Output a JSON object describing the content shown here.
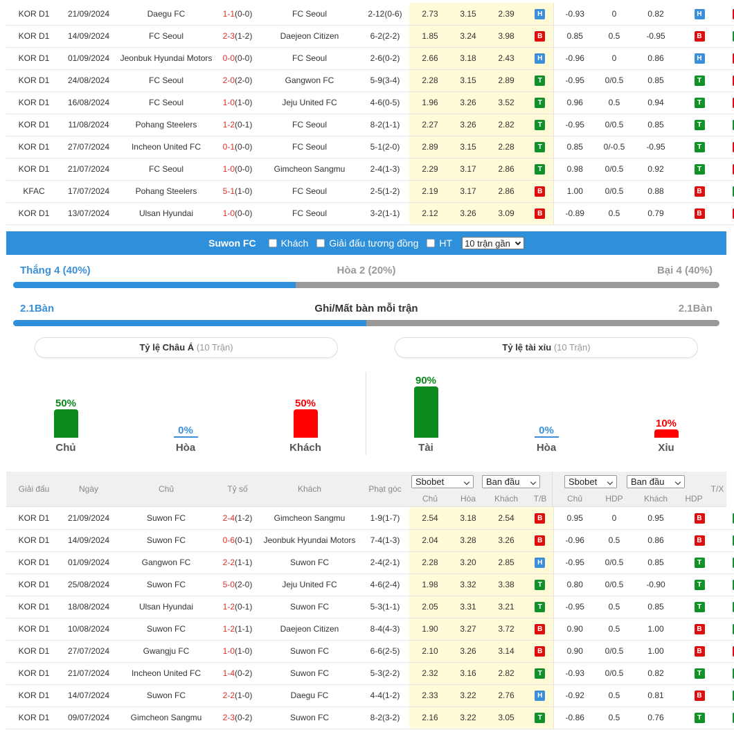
{
  "top_rows": [
    {
      "league": "KOR D1",
      "date": "21/09/2024",
      "home": "Daegu FC",
      "home_hl": false,
      "ft": "1-1",
      "ht": "(0-0)",
      "away": "FC Seoul",
      "away_hl": true,
      "corner": "2-12(0-6)",
      "o1": "2.73",
      "ox": "3.15",
      "o2": "2.39",
      "r1": "H",
      "h1": "-0.93",
      "hdp": "0",
      "h2": "0.82",
      "r2": "H",
      "r3": "X"
    },
    {
      "league": "KOR D1",
      "date": "14/09/2024",
      "home": "FC Seoul",
      "home_hl": true,
      "ft": "2-3",
      "ht": "(1-2)",
      "away": "Daejeon Citizen",
      "away_hl": false,
      "corner": "6-2(2-2)",
      "o1": "1.85",
      "ox": "3.24",
      "o2": "3.98",
      "r1": "B",
      "h1": "0.85",
      "hdp": "0.5",
      "h2": "-0.95",
      "r2": "B",
      "r3": "T"
    },
    {
      "league": "KOR D1",
      "date": "01/09/2024",
      "home": "Jeonbuk Hyundai Motors",
      "home_hl": false,
      "ft": "0-0",
      "ht": "(0-0)",
      "away": "FC Seoul",
      "away_hl": true,
      "corner": "2-6(0-2)",
      "o1": "2.66",
      "ox": "3.18",
      "o2": "2.43",
      "r1": "H",
      "h1": "-0.96",
      "hdp": "0",
      "h2": "0.86",
      "r2": "H",
      "r3": "X"
    },
    {
      "league": "KOR D1",
      "date": "24/08/2024",
      "home": "FC Seoul",
      "home_hl": true,
      "ft": "2-0",
      "ht": "(2-0)",
      "away": "Gangwon FC",
      "away_hl": false,
      "corner": "5-9(3-4)",
      "o1": "2.28",
      "ox": "3.15",
      "o2": "2.89",
      "r1": "T",
      "h1": "-0.95",
      "hdp": "0/0.5",
      "h2": "0.85",
      "r2": "T",
      "r3": "X"
    },
    {
      "league": "KOR D1",
      "date": "16/08/2024",
      "home": "FC Seoul",
      "home_hl": true,
      "ft": "1-0",
      "ht": "(1-0)",
      "away": "Jeju United FC",
      "away_hl": false,
      "corner": "4-6(0-5)",
      "o1": "1.96",
      "ox": "3.26",
      "o2": "3.52",
      "r1": "T",
      "h1": "0.96",
      "hdp": "0.5",
      "h2": "0.94",
      "r2": "T",
      "r3": "X"
    },
    {
      "league": "KOR D1",
      "date": "11/08/2024",
      "home": "Pohang Steelers",
      "home_hl": false,
      "ft": "1-2",
      "ht": "(0-1)",
      "away": "FC Seoul",
      "away_hl": true,
      "corner": "8-2(1-1)",
      "o1": "2.27",
      "ox": "3.26",
      "o2": "2.82",
      "r1": "T",
      "h1": "-0.95",
      "hdp": "0/0.5",
      "h2": "0.85",
      "r2": "T",
      "r3": "T"
    },
    {
      "league": "KOR D1",
      "date": "27/07/2024",
      "home": "Incheon United FC",
      "home_hl": false,
      "ft": "0-1",
      "ht": "(0-0)",
      "away": "FC Seoul",
      "away_hl": true,
      "corner": "5-1(2-0)",
      "o1": "2.89",
      "ox": "3.15",
      "o2": "2.28",
      "r1": "T",
      "h1": "0.85",
      "hdp": "0/-0.5",
      "h2": "-0.95",
      "r2": "T",
      "r3": "X"
    },
    {
      "league": "KOR D1",
      "date": "21/07/2024",
      "home": "FC Seoul",
      "home_hl": true,
      "ft": "1-0",
      "ht": "(0-0)",
      "away": "Gimcheon Sangmu",
      "away_hl": false,
      "corner": "2-4(1-3)",
      "o1": "2.29",
      "ox": "3.17",
      "o2": "2.86",
      "r1": "T",
      "h1": "0.98",
      "hdp": "0/0.5",
      "h2": "0.92",
      "r2": "T",
      "r3": "X"
    },
    {
      "league": "KFAC",
      "date": "17/07/2024",
      "home": "Pohang Steelers",
      "home_hl": false,
      "ft": "5-1",
      "ht": "(1-0)",
      "away": "FC Seoul",
      "away_hl": true,
      "corner": "2-5(1-2)",
      "o1": "2.19",
      "ox": "3.17",
      "o2": "2.86",
      "r1": "B",
      "h1": "1.00",
      "hdp": "0/0.5",
      "h2": "0.88",
      "r2": "B",
      "r3": "T"
    },
    {
      "league": "KOR D1",
      "date": "13/07/2024",
      "home": "Ulsan Hyundai",
      "home_hl": false,
      "ft": "1-0",
      "ht": "(0-0)",
      "away": "FC Seoul",
      "away_hl": true,
      "corner": "3-2(1-1)",
      "o1": "2.12",
      "ox": "3.26",
      "o2": "3.09",
      "r1": "B",
      "h1": "-0.89",
      "hdp": "0.5",
      "h2": "0.79",
      "r2": "B",
      "r3": "X"
    }
  ],
  "filter": {
    "team": "Suwon FC",
    "opt_away": "Khách",
    "opt_same_league": "Giải đấu tương đồng",
    "opt_ht": "HT",
    "range_selected": "10 trận gần"
  },
  "summary": {
    "win_label": "Thắng 4 (40%)",
    "draw_label": "Hòa 2 (20%)",
    "loss_label": "Bại 4 (40%)",
    "win_fraction": 0.4,
    "goals_for": "2.1Bàn",
    "goals_title": "Ghi/Mất bàn mỗi trận",
    "goals_against": "2.1Bàn",
    "goals_fraction": 0.5
  },
  "asian_pill": {
    "title": "Tỷ lệ Châu Á",
    "count": "(10 Trận)"
  },
  "ou_pill": {
    "title": "Tỷ lệ tài xỉu",
    "count": "(10 Trận)"
  },
  "asian_bars": [
    {
      "label": "Chủ",
      "pct": "50%",
      "value": 50,
      "color": "#0c8a1e"
    },
    {
      "label": "Hòa",
      "pct": "0%",
      "value": 0,
      "color": "#3b8fd9"
    },
    {
      "label": "Khách",
      "pct": "50%",
      "value": 50,
      "color": "#ff0000"
    }
  ],
  "ou_bars": [
    {
      "label": "Tài",
      "pct": "90%",
      "value": 90,
      "color": "#0c8a1e"
    },
    {
      "label": "Hòa",
      "pct": "0%",
      "value": 0,
      "color": "#3b8fd9"
    },
    {
      "label": "Xỉu",
      "pct": "10%",
      "value": 10,
      "color": "#ff0000"
    }
  ],
  "header": {
    "league": "Giải đấu",
    "date": "Ngày",
    "home": "Chủ",
    "score": "Tỷ số",
    "away": "Khách",
    "corner": "Phạt góc",
    "book1": "Sbobet",
    "type1": "Ban đầu",
    "book2": "Sbobet",
    "type2": "Ban đầu",
    "sub_home": "Chủ",
    "sub_draw": "Hòa",
    "sub_away": "Khách",
    "sub_tb": "T/B",
    "sub_home2": "Chủ",
    "sub_hdp": "HDP",
    "sub_away2": "Khách",
    "sub_hdp2": "HDP",
    "tx": "T/X"
  },
  "bottom_rows": [
    {
      "league": "KOR D1",
      "date": "21/09/2024",
      "home": "Suwon FC",
      "home_hl": true,
      "ft": "2-4",
      "ht": "(1-2)",
      "away": "Gimcheon Sangmu",
      "away_hl": false,
      "corner": "1-9(1-7)",
      "o1": "2.54",
      "ox": "3.18",
      "o2": "2.54",
      "r1": "B",
      "h1": "0.95",
      "hdp": "0",
      "h2": "0.95",
      "r2": "B",
      "r3": "T"
    },
    {
      "league": "KOR D1",
      "date": "14/09/2024",
      "home": "Suwon FC",
      "home_hl": true,
      "ft": "0-6",
      "ht": "(0-1)",
      "away": "Jeonbuk Hyundai Motors",
      "away_hl": false,
      "corner": "7-4(1-3)",
      "o1": "2.04",
      "ox": "3.28",
      "o2": "3.26",
      "r1": "B",
      "h1": "-0.96",
      "hdp": "0.5",
      "h2": "0.86",
      "r2": "B",
      "r3": "T"
    },
    {
      "league": "KOR D1",
      "date": "01/09/2024",
      "home": "Gangwon FC",
      "home_hl": false,
      "ft": "2-2",
      "ht": "(1-1)",
      "away": "Suwon FC",
      "away_hl": true,
      "corner": "2-4(2-1)",
      "o1": "2.28",
      "ox": "3.20",
      "o2": "2.85",
      "r1": "H",
      "h1": "-0.95",
      "hdp": "0/0.5",
      "h2": "0.85",
      "r2": "T",
      "r3": "T"
    },
    {
      "league": "KOR D1",
      "date": "25/08/2024",
      "home": "Suwon FC",
      "home_hl": true,
      "ft": "5-0",
      "ht": "(2-0)",
      "away": "Jeju United FC",
      "away_hl": false,
      "corner": "4-6(2-4)",
      "o1": "1.98",
      "ox": "3.32",
      "o2": "3.38",
      "r1": "T",
      "h1": "0.80",
      "hdp": "0/0.5",
      "h2": "-0.90",
      "r2": "T",
      "r3": "T"
    },
    {
      "league": "KOR D1",
      "date": "18/08/2024",
      "home": "Ulsan Hyundai",
      "home_hl": false,
      "ft": "1-2",
      "ht": "(0-1)",
      "away": "Suwon FC",
      "away_hl": true,
      "corner": "5-3(1-1)",
      "o1": "2.05",
      "ox": "3.31",
      "o2": "3.21",
      "r1": "T",
      "h1": "-0.95",
      "hdp": "0.5",
      "h2": "0.85",
      "r2": "T",
      "r3": "T"
    },
    {
      "league": "KOR D1",
      "date": "10/08/2024",
      "home": "Suwon FC",
      "home_hl": true,
      "ft": "1-2",
      "ht": "(1-1)",
      "away": "Daejeon Citizen",
      "away_hl": false,
      "corner": "8-4(4-3)",
      "o1": "1.90",
      "ox": "3.27",
      "o2": "3.72",
      "r1": "B",
      "h1": "0.90",
      "hdp": "0.5",
      "h2": "1.00",
      "r2": "B",
      "r3": "T"
    },
    {
      "league": "KOR D1",
      "date": "27/07/2024",
      "home": "Gwangju FC",
      "home_hl": false,
      "ft": "1-0",
      "ht": "(1-0)",
      "away": "Suwon FC",
      "away_hl": true,
      "corner": "6-6(2-5)",
      "o1": "2.10",
      "ox": "3.26",
      "o2": "3.14",
      "r1": "B",
      "h1": "0.90",
      "hdp": "0/0.5",
      "h2": "1.00",
      "r2": "B",
      "r3": "X"
    },
    {
      "league": "KOR D1",
      "date": "21/07/2024",
      "home": "Incheon United FC",
      "home_hl": false,
      "ft": "1-4",
      "ht": "(0-2)",
      "away": "Suwon FC",
      "away_hl": true,
      "corner": "5-3(2-2)",
      "o1": "2.32",
      "ox": "3.16",
      "o2": "2.82",
      "r1": "T",
      "h1": "-0.93",
      "hdp": "0/0.5",
      "h2": "0.82",
      "r2": "T",
      "r3": "T"
    },
    {
      "league": "KOR D1",
      "date": "14/07/2024",
      "home": "Suwon FC",
      "home_hl": true,
      "ft": "2-2",
      "ht": "(1-0)",
      "away": "Daegu FC",
      "away_hl": false,
      "corner": "4-4(1-2)",
      "o1": "2.33",
      "ox": "3.22",
      "o2": "2.76",
      "r1": "H",
      "h1": "-0.92",
      "hdp": "0.5",
      "h2": "0.81",
      "r2": "B",
      "r3": "T"
    },
    {
      "league": "KOR D1",
      "date": "09/07/2024",
      "home": "Gimcheon Sangmu",
      "home_hl": false,
      "ft": "2-3",
      "ht": "(0-2)",
      "away": "Suwon FC",
      "away_hl": true,
      "corner": "8-2(3-2)",
      "o1": "2.16",
      "ox": "3.22",
      "o2": "3.05",
      "r1": "T",
      "h1": "-0.86",
      "hdp": "0.5",
      "h2": "0.76",
      "r2": "T",
      "r3": "T"
    }
  ]
}
